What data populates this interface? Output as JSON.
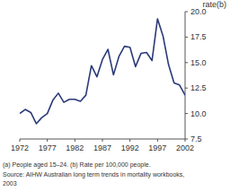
{
  "chart_data": {
    "type": "line",
    "y_label": "rate(b)",
    "x": [
      1972,
      1973,
      1974,
      1975,
      1976,
      1977,
      1978,
      1979,
      1980,
      1981,
      1982,
      1983,
      1984,
      1985,
      1986,
      1987,
      1988,
      1989,
      1990,
      1991,
      1992,
      1993,
      1994,
      1995,
      1996,
      1997,
      1998,
      1999,
      2000,
      2001,
      2002
    ],
    "values": [
      10.0,
      10.4,
      10.1,
      9.0,
      9.6,
      10.0,
      11.3,
      12.0,
      11.1,
      11.4,
      11.4,
      11.2,
      11.8,
      14.7,
      13.6,
      15.3,
      16.3,
      13.8,
      15.6,
      16.6,
      16.5,
      14.6,
      15.9,
      16.0,
      15.2,
      19.3,
      17.6,
      14.8,
      13.0,
      12.8,
      11.8
    ],
    "color": "#2b3a78",
    "xlim": [
      1972,
      2002
    ],
    "xticks": [
      1972,
      1977,
      1982,
      1987,
      1992,
      1997,
      2002
    ],
    "ylim": [
      7.5,
      20
    ],
    "yticks": [
      7.5,
      {
        "value": 10,
        "label": "10.0"
      },
      12.5,
      {
        "value": 15,
        "label": "15.0"
      },
      17.5,
      {
        "value": 20,
        "label": "20.0"
      }
    ],
    "grid": false,
    "annotations": [
      "(a) People aged 15–24. (b) Rate per 100,000 people.",
      "Source: AIHW Australian long term trends in mortality workbooks,",
      "2003"
    ]
  }
}
